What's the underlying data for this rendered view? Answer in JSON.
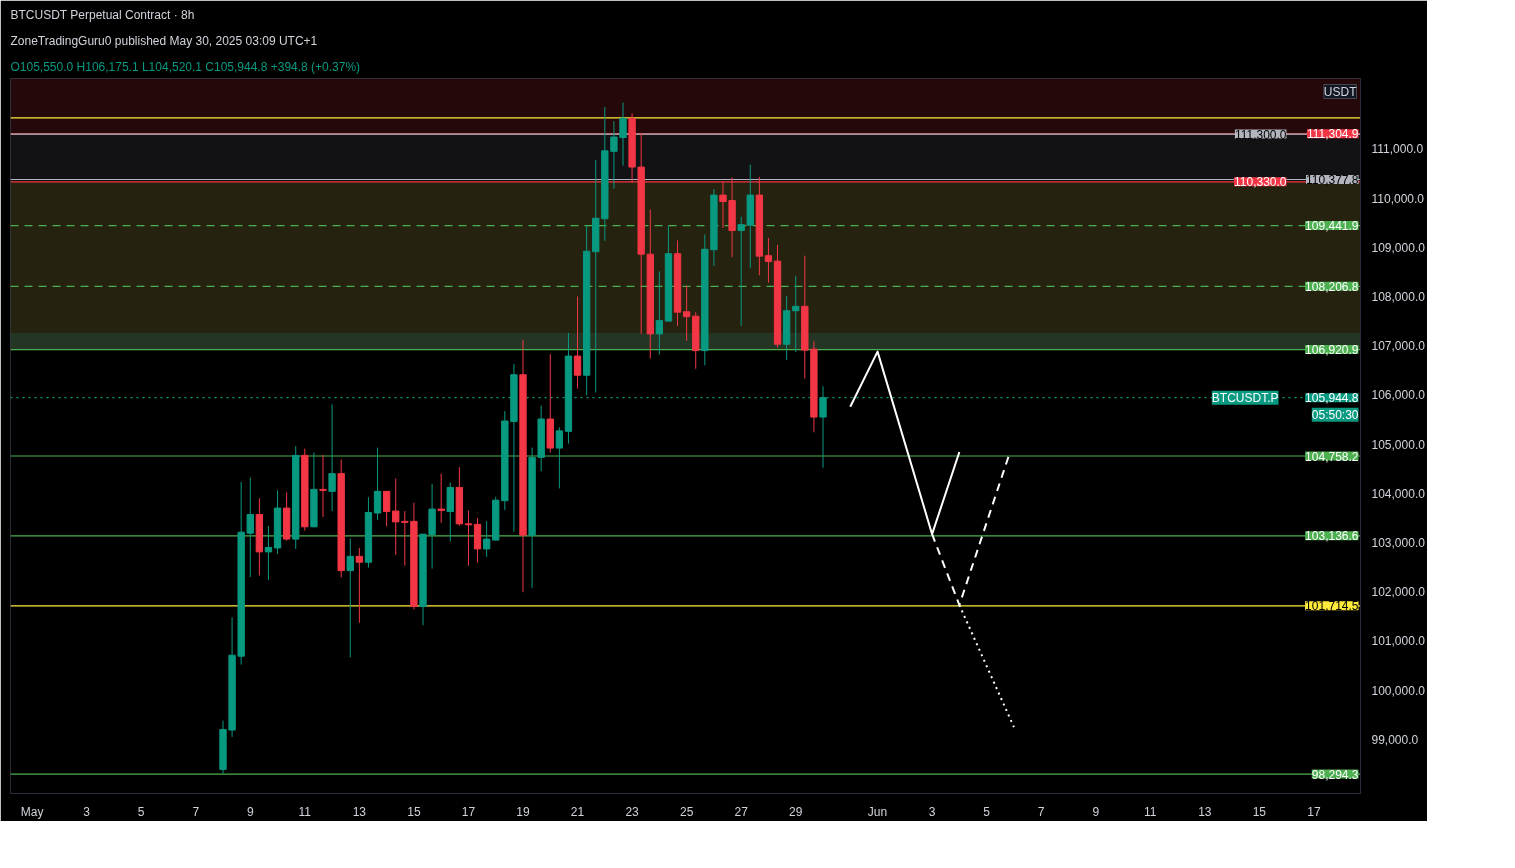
{
  "chart_data": {
    "type": "candlestick",
    "title": "BTCUSDT Perpetual Contract · 8h",
    "subtitle": "O105,550.0  H106,175.1  L104,520.1  C105,944.8  +394.8 (+0.37%)",
    "ylabel": "USDT",
    "annotations": [
      "ZoneTradingGuru0 published May 30, 2025 03:09 UTC+1",
      "BTCUSDT.P",
      "05:50:30"
    ],
    "x": [
      "2025-05-08T00:00",
      "2025-05-08T08:00",
      "2025-05-08T16:00",
      "2025-05-09T00:00",
      "2025-05-09T08:00",
      "2025-05-09T16:00",
      "2025-05-10T00:00",
      "2025-05-10T08:00",
      "2025-05-10T16:00",
      "2025-05-11T00:00",
      "2025-05-11T08:00",
      "2025-05-11T16:00",
      "2025-05-12T00:00",
      "2025-05-12T08:00",
      "2025-05-12T16:00",
      "2025-05-13T00:00",
      "2025-05-13T08:00",
      "2025-05-13T16:00",
      "2025-05-14T00:00",
      "2025-05-14T08:00",
      "2025-05-14T16:00",
      "2025-05-15T00:00",
      "2025-05-15T08:00",
      "2025-05-15T16:00",
      "2025-05-16T00:00",
      "2025-05-16T08:00",
      "2025-05-16T16:00",
      "2025-05-17T00:00",
      "2025-05-17T08:00",
      "2025-05-17T16:00",
      "2025-05-18T00:00",
      "2025-05-18T08:00",
      "2025-05-18T16:00",
      "2025-05-19T00:00",
      "2025-05-19T08:00",
      "2025-05-19T16:00",
      "2025-05-20T00:00",
      "2025-05-20T08:00",
      "2025-05-20T16:00",
      "2025-05-21T00:00",
      "2025-05-21T08:00",
      "2025-05-21T16:00",
      "2025-05-22T00:00",
      "2025-05-22T08:00",
      "2025-05-22T16:00",
      "2025-05-23T00:00",
      "2025-05-23T08:00",
      "2025-05-23T16:00",
      "2025-05-24T00:00",
      "2025-05-24T08:00",
      "2025-05-24T16:00",
      "2025-05-25T00:00",
      "2025-05-25T08:00",
      "2025-05-25T16:00",
      "2025-05-26T00:00",
      "2025-05-26T08:00",
      "2025-05-26T16:00",
      "2025-05-27T00:00",
      "2025-05-27T08:00",
      "2025-05-27T16:00",
      "2025-05-28T00:00",
      "2025-05-28T08:00",
      "2025-05-28T16:00",
      "2025-05-29T00:00",
      "2025-05-29T08:00",
      "2025-05-29T16:00",
      "2025-05-30T00:00"
    ],
    "ohlc": [
      [
        98390,
        99380,
        98300,
        99200
      ],
      [
        99190,
        101480,
        99050,
        100710
      ],
      [
        100690,
        104230,
        100520,
        103210
      ],
      [
        103190,
        104320,
        102300,
        103570
      ],
      [
        103570,
        103900,
        102330,
        102810
      ],
      [
        102810,
        103340,
        102240,
        102900
      ],
      [
        102890,
        104060,
        102770,
        103700
      ],
      [
        103700,
        104020,
        103040,
        103070
      ],
      [
        103070,
        104960,
        102870,
        104770
      ],
      [
        104770,
        104910,
        103240,
        103320
      ],
      [
        103320,
        104830,
        103310,
        104080
      ],
      [
        104080,
        104780,
        103520,
        104060
      ],
      [
        104040,
        105810,
        103640,
        104400
      ],
      [
        104400,
        104690,
        102290,
        102430
      ],
      [
        102430,
        103080,
        100670,
        102720
      ],
      [
        102720,
        102890,
        101370,
        102600
      ],
      [
        102600,
        103920,
        102490,
        103610
      ],
      [
        103600,
        104930,
        103460,
        104040
      ],
      [
        104040,
        104040,
        103330,
        103630
      ],
      [
        103640,
        104300,
        102750,
        103420
      ],
      [
        103430,
        103640,
        102530,
        103410
      ],
      [
        103430,
        103810,
        101640,
        101700
      ],
      [
        101700,
        103170,
        101320,
        103170
      ],
      [
        103160,
        104190,
        102470,
        103680
      ],
      [
        103680,
        104400,
        103400,
        103650
      ],
      [
        103630,
        104220,
        103020,
        104120
      ],
      [
        104120,
        104530,
        103340,
        103380
      ],
      [
        103380,
        103650,
        102530,
        103360
      ],
      [
        103370,
        103500,
        102590,
        102870
      ],
      [
        102870,
        103430,
        102710,
        103070
      ],
      [
        103050,
        103930,
        103040,
        103860
      ],
      [
        103850,
        105670,
        103660,
        105470
      ],
      [
        105460,
        106630,
        103220,
        106410
      ],
      [
        106410,
        107120,
        101990,
        103150
      ],
      [
        103150,
        104930,
        102080,
        104730
      ],
      [
        104730,
        105780,
        104450,
        105510
      ],
      [
        105510,
        106830,
        104830,
        104920
      ],
      [
        104920,
        105340,
        104100,
        105270
      ],
      [
        105260,
        107260,
        105010,
        106790
      ],
      [
        106790,
        108000,
        106130,
        106400
      ],
      [
        106400,
        109440,
        105990,
        108920
      ],
      [
        108910,
        110770,
        106050,
        109590
      ],
      [
        109580,
        111850,
        109130,
        110960
      ],
      [
        110950,
        111560,
        110190,
        111240
      ],
      [
        111230,
        111940,
        110660,
        111620
      ],
      [
        111620,
        111720,
        110310,
        110630
      ],
      [
        110630,
        111310,
        107240,
        108860
      ],
      [
        108860,
        109770,
        106740,
        107240
      ],
      [
        107240,
        108510,
        106820,
        107510
      ],
      [
        107500,
        109440,
        107500,
        108870
      ],
      [
        108870,
        109140,
        107400,
        107680
      ],
      [
        107690,
        108220,
        107100,
        107590
      ],
      [
        107600,
        107680,
        106530,
        106900
      ],
      [
        106900,
        109260,
        106600,
        108960
      ],
      [
        108950,
        110180,
        108620,
        110060
      ],
      [
        110060,
        110340,
        109390,
        109930
      ],
      [
        109950,
        110420,
        108800,
        109340
      ],
      [
        109340,
        109620,
        107400,
        109460
      ],
      [
        109450,
        110680,
        108580,
        110060
      ],
      [
        110060,
        110430,
        108430,
        108820
      ],
      [
        108830,
        109190,
        108280,
        108710
      ],
      [
        108720,
        109050,
        106960,
        107030
      ],
      [
        107030,
        108010,
        106710,
        107710
      ],
      [
        107710,
        108420,
        106870,
        107800
      ],
      [
        107800,
        108830,
        106330,
        106910
      ],
      [
        106930,
        107090,
        105240,
        105550
      ],
      [
        105550.0,
        106175.1,
        104520.1,
        105944.8
      ]
    ],
    "colors": [
      "#089981",
      "#089981",
      "#089981",
      "#089981",
      "#f23645",
      "#089981",
      "#089981",
      "#f23645",
      "#089981",
      "#f23645",
      "#089981",
      "#f23645",
      "#089981",
      "#f23645",
      "#089981",
      "#f23645",
      "#089981",
      "#089981",
      "#f23645",
      "#f23645",
      "#f23645",
      "#f23645",
      "#089981",
      "#089981",
      "#f23645",
      "#089981",
      "#f23645",
      "#f23645",
      "#f23645",
      "#089981",
      "#089981",
      "#089981",
      "#089981",
      "#f23645",
      "#089981",
      "#089981",
      "#f23645",
      "#089981",
      "#089981",
      "#f23645",
      "#089981",
      "#089981",
      "#089981",
      "#089981",
      "#089981",
      "#f23645",
      "#f23645",
      "#f23645",
      "#089981",
      "#089981",
      "#f23645",
      "#f23645",
      "#f23645",
      "#089981",
      "#089981",
      "#f23645",
      "#f23645",
      "#089981",
      "#089981",
      "#f23645",
      "#f23645",
      "#f23645",
      "#089981",
      "#089981",
      "#f23645",
      "#f23645",
      "#089981"
    ],
    "series": [
      {
        "type": "line",
        "color": "#ffffff",
        "line_style": "solid",
        "x": [
          "2025-05-31T00:00",
          "2025-06-01T00:00",
          "2025-06-03T00:00",
          "2025-06-04T00:00"
        ],
        "values": [
          105760,
          106880,
          103170,
          104840
        ]
      },
      {
        "type": "line",
        "color": "#ffffff",
        "line_style": "dashed",
        "x": [
          "2025-06-03T00:00",
          "2025-06-04T00:00",
          "2025-06-05T20:00"
        ],
        "values": [
          103170,
          101730,
          104800
        ]
      },
      {
        "type": "line",
        "color": "#ffffff",
        "line_style": "dotted",
        "x": [
          "2025-06-04T00:00",
          "2025-06-06T00:00"
        ],
        "values": [
          101730,
          99250
        ]
      }
    ],
    "ref_lines": [
      {
        "axis": "y",
        "value": 111630,
        "color": "#ffeb3b"
      },
      {
        "axis": "y",
        "value": 111304.9,
        "label": "111,304.9",
        "color": "#f23645"
      },
      {
        "axis": "y",
        "value": 111300.0,
        "label": "111,300.0",
        "color": "#b2b5be"
      },
      {
        "axis": "y",
        "value": 110377.8,
        "label": "110,377.8",
        "color": "#b2b5be"
      },
      {
        "axis": "y",
        "value": 110330.0,
        "label": "110,330.0",
        "color": "#f23645"
      },
      {
        "axis": "y",
        "value": 109441.9,
        "label": "109,441.9",
        "color": "#4caf50",
        "line_style": "dashed"
      },
      {
        "axis": "y",
        "value": 108206.8,
        "label": "108,206.8",
        "color": "#4caf50",
        "line_style": "dashed"
      },
      {
        "axis": "y",
        "value": 106920.9,
        "label": "106,920.9",
        "color": "#4caf50"
      },
      {
        "axis": "y",
        "value": 105944.8,
        "label": "105,944.8",
        "color": "#089981",
        "line_style": "dotted"
      },
      {
        "axis": "y",
        "value": 104758.2,
        "label": "104,758.2",
        "color": "#4caf50"
      },
      {
        "axis": "y",
        "value": 103136.6,
        "label": "103,136.6",
        "color": "#4caf50"
      },
      {
        "axis": "y",
        "value": 101714.5,
        "label": "101,714.5",
        "color": "#ffeb3b"
      },
      {
        "axis": "y",
        "value": 98294.3,
        "label": "98,294.3",
        "color": "#4caf50"
      }
    ],
    "bands": [
      {
        "axis": "y",
        "from": 106920.9,
        "to": 110330.0,
        "color": "#f7e463"
      },
      {
        "axis": "y",
        "from": 106920.9,
        "to": 107260,
        "color": "#26a69a"
      },
      {
        "axis": "y",
        "from": 110330.0,
        "to": 111300.0,
        "color": "#787b86"
      },
      {
        "axis": "y",
        "from": 111300.0,
        "to": 112430,
        "color": "#f23645"
      }
    ],
    "xlim": [
      "2025-04-30T05:00",
      "2025-06-18T17:00"
    ],
    "xticks": [
      {
        "value": "2025-05-01",
        "label": "May"
      },
      {
        "value": "2025-05-03",
        "label": "3"
      },
      {
        "value": "2025-05-05",
        "label": "5"
      },
      {
        "value": "2025-05-07",
        "label": "7"
      },
      {
        "value": "2025-05-09",
        "label": "9"
      },
      {
        "value": "2025-05-11",
        "label": "11"
      },
      {
        "value": "2025-05-13",
        "label": "13"
      },
      {
        "value": "2025-05-15",
        "label": "15"
      },
      {
        "value": "2025-05-17",
        "label": "17"
      },
      {
        "value": "2025-05-19",
        "label": "19"
      },
      {
        "value": "2025-05-21",
        "label": "21"
      },
      {
        "value": "2025-05-23",
        "label": "23"
      },
      {
        "value": "2025-05-25",
        "label": "25"
      },
      {
        "value": "2025-05-27",
        "label": "27"
      },
      {
        "value": "2025-05-29",
        "label": "29"
      },
      {
        "value": "2025-06-01",
        "label": "Jun"
      },
      {
        "value": "2025-06-03",
        "label": "3"
      },
      {
        "value": "2025-06-05",
        "label": "5"
      },
      {
        "value": "2025-06-07",
        "label": "7"
      },
      {
        "value": "2025-06-09",
        "label": "9"
      },
      {
        "value": "2025-06-11",
        "label": "11"
      },
      {
        "value": "2025-06-13",
        "label": "13"
      },
      {
        "value": "2025-06-15",
        "label": "15"
      },
      {
        "value": "2025-06-17",
        "label": "17"
      }
    ],
    "ylim": [
      97900,
      112430
    ],
    "yticks": [
      {
        "value": 99000,
        "label": "99,000.0"
      },
      {
        "value": 100000,
        "label": "100,000.0"
      },
      {
        "value": 101000,
        "label": "101,000.0"
      },
      {
        "value": 102000,
        "label": "102,000.0"
      },
      {
        "value": 103000,
        "label": "103,000.0"
      },
      {
        "value": 104000,
        "label": "104,000.0"
      },
      {
        "value": 105000,
        "label": "105,000.0"
      },
      {
        "value": 106000,
        "label": "106,000.0"
      },
      {
        "value": 107000,
        "label": "107,000.0"
      },
      {
        "value": 108000,
        "label": "108,000.0"
      },
      {
        "value": 109000,
        "label": "109,000.0"
      },
      {
        "value": 110000,
        "label": "110,000.0"
      },
      {
        "value": 111000,
        "label": "111,000.0"
      }
    ],
    "grid": false
  }
}
